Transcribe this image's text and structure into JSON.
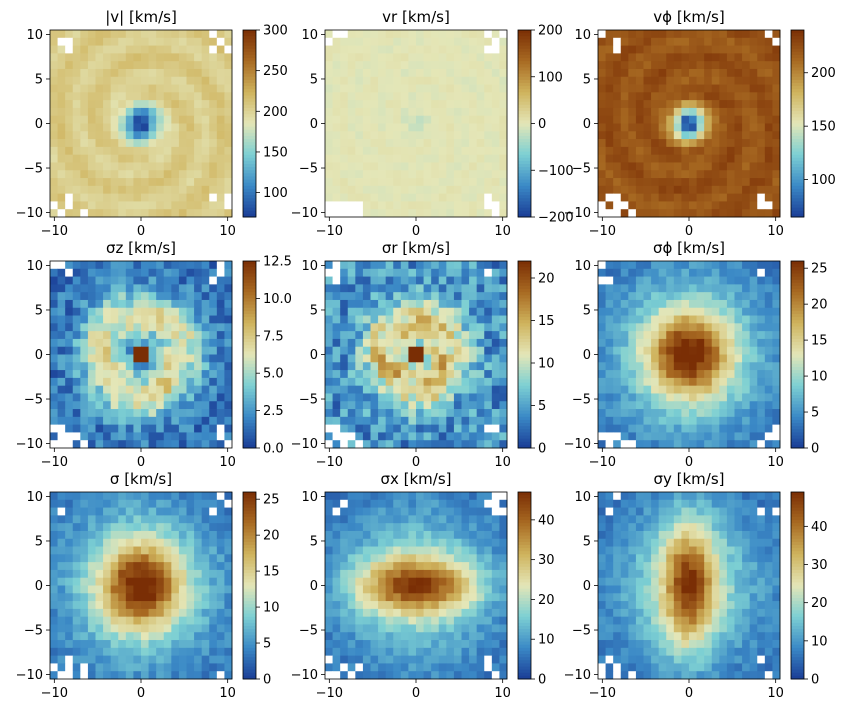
{
  "figure": {
    "colormap": [
      "#1a3d96",
      "#3b89c6",
      "#7dd0d3",
      "#e4e6b7",
      "#cfb35d",
      "#a86a22",
      "#7a2e05"
    ],
    "missing_color": "#ffffff"
  },
  "chart_data": [
    {
      "type": "heatmap",
      "title": "|v| [km/s]",
      "xlim": [
        -10.5,
        10.5
      ],
      "ylim": [
        -10.5,
        10.5
      ],
      "xticks": [
        "-10",
        "0",
        "10"
      ],
      "yticks": [
        "10",
        "5",
        "0",
        "-5",
        "-10"
      ],
      "colorbar": {
        "min": 70,
        "max": 300,
        "ticks": [
          "300",
          "250",
          "200",
          "150",
          "100"
        ]
      },
      "field": {
        "kind": "dip",
        "outer": 205,
        "center": 70,
        "radius": 1.4,
        "wave": 8,
        "noise": 5
      }
    },
    {
      "type": "heatmap",
      "title": "vr [km/s]",
      "xlim": [
        -10.5,
        10.5
      ],
      "ylim": [
        -10.5,
        10.5
      ],
      "xticks": [
        "-10",
        "0",
        "10"
      ],
      "yticks": [
        "10",
        "5",
        "0",
        "-5",
        "-10"
      ],
      "colorbar": {
        "min": -200,
        "max": 200,
        "ticks": [
          "200",
          "100",
          "0",
          "−100",
          "−200"
        ]
      },
      "field": {
        "kind": "flat",
        "outer": 0,
        "center": -20,
        "radius": 1.0,
        "wave": 4,
        "noise": 5
      }
    },
    {
      "type": "heatmap",
      "title": "vϕ [km/s]",
      "xlim": [
        -10.5,
        10.5
      ],
      "ylim": [
        -10.5,
        10.5
      ],
      "xticks": [
        "-10",
        "0",
        "10"
      ],
      "yticks": [
        "10",
        "5",
        "0",
        "-5",
        "-10"
      ],
      "colorbar": {
        "min": 65,
        "max": 240,
        "ticks": [
          "200",
          "150",
          "100"
        ]
      },
      "field": {
        "kind": "dip",
        "outer": 222,
        "center": 65,
        "radius": 1.3,
        "wave": 6,
        "noise": 5
      }
    },
    {
      "type": "heatmap",
      "title": "σz [km/s]",
      "xlim": [
        -10.5,
        10.5
      ],
      "ylim": [
        -10.5,
        10.5
      ],
      "xticks": [
        "-10",
        "0",
        "10"
      ],
      "yticks": [
        "10",
        "5",
        "0",
        "-5",
        "-10"
      ],
      "colorbar": {
        "min": 0,
        "max": 12.5,
        "ticks": [
          "12.5",
          "10.0",
          "7.5",
          "5.0",
          "2.5",
          "0.0"
        ]
      },
      "field": {
        "kind": "ring",
        "outer": 1.5,
        "peak": 7.5,
        "ringR": 4.5,
        "center": 4.5,
        "spike": 12.5,
        "noise": 1.3
      }
    },
    {
      "type": "heatmap",
      "title": "σr [km/s]",
      "xlim": [
        -10.5,
        10.5
      ],
      "ylim": [
        -10.5,
        10.5
      ],
      "xticks": [
        "-10",
        "0",
        "10"
      ],
      "yticks": [
        "10",
        "5",
        "0",
        "-5",
        "-10"
      ],
      "colorbar": {
        "min": 0,
        "max": 22,
        "ticks": [
          "20",
          "15",
          "10",
          "5",
          "0"
        ]
      },
      "field": {
        "kind": "ring",
        "outer": 4,
        "peak": 15,
        "ringR": 3.5,
        "center": 8,
        "spike": 22,
        "noise": 3
      }
    },
    {
      "type": "heatmap",
      "title": "σϕ [km/s]",
      "xlim": [
        -10.5,
        10.5
      ],
      "ylim": [
        -10.5,
        10.5
      ],
      "xticks": [
        "-10",
        "0",
        "10"
      ],
      "yticks": [
        "10",
        "5",
        "0",
        "-5",
        "-10"
      ],
      "colorbar": {
        "min": 0,
        "max": 26,
        "ticks": [
          "25",
          "20",
          "15",
          "10",
          "5",
          "0"
        ]
      },
      "field": {
        "kind": "peak",
        "outer": 3,
        "peak": 26,
        "width": 3.2,
        "stretch": 1.0,
        "noise": 1.5
      }
    },
    {
      "type": "heatmap",
      "title": "σ [km/s]",
      "xlim": [
        -10.5,
        10.5
      ],
      "ylim": [
        -10.5,
        10.5
      ],
      "xticks": [
        "-10",
        "0",
        "10"
      ],
      "yticks": [
        "10",
        "5",
        "0",
        "-5",
        "-10"
      ],
      "colorbar": {
        "min": 0,
        "max": 26,
        "ticks": [
          "25",
          "20",
          "15",
          "10",
          "5",
          "0"
        ]
      },
      "field": {
        "kind": "peak",
        "outer": 3,
        "peak": 26,
        "width": 3.2,
        "stretch": 1.0,
        "noise": 1.5
      }
    },
    {
      "type": "heatmap",
      "title": "σx [km/s]",
      "xlim": [
        -10.5,
        10.5
      ],
      "ylim": [
        -10.5,
        10.5
      ],
      "xticks": [
        "-10",
        "0",
        "10"
      ],
      "yticks": [
        "10",
        "5",
        "0",
        "-5",
        "-10"
      ],
      "colorbar": {
        "min": 0,
        "max": 47,
        "ticks": [
          "40",
          "30",
          "20",
          "10",
          "0"
        ]
      },
      "field": {
        "kind": "peak",
        "outer": 5,
        "peak": 44,
        "width": 3.2,
        "stretch": 2.2,
        "noise": 2.5
      }
    },
    {
      "type": "heatmap",
      "title": "σy [km/s]",
      "xlim": [
        -10.5,
        10.5
      ],
      "ylim": [
        -10.5,
        10.5
      ],
      "xticks": [
        "-10",
        "0",
        "10"
      ],
      "yticks": [
        "10",
        "5",
        "0",
        "-5",
        "-10"
      ],
      "colorbar": {
        "min": 0,
        "max": 49,
        "ticks": [
          "40",
          "30",
          "20",
          "10",
          "0"
        ]
      },
      "field": {
        "kind": "peak",
        "outer": 5,
        "peak": 46,
        "width": 3.2,
        "stretch": 0.45,
        "noise": 2.5
      }
    }
  ]
}
